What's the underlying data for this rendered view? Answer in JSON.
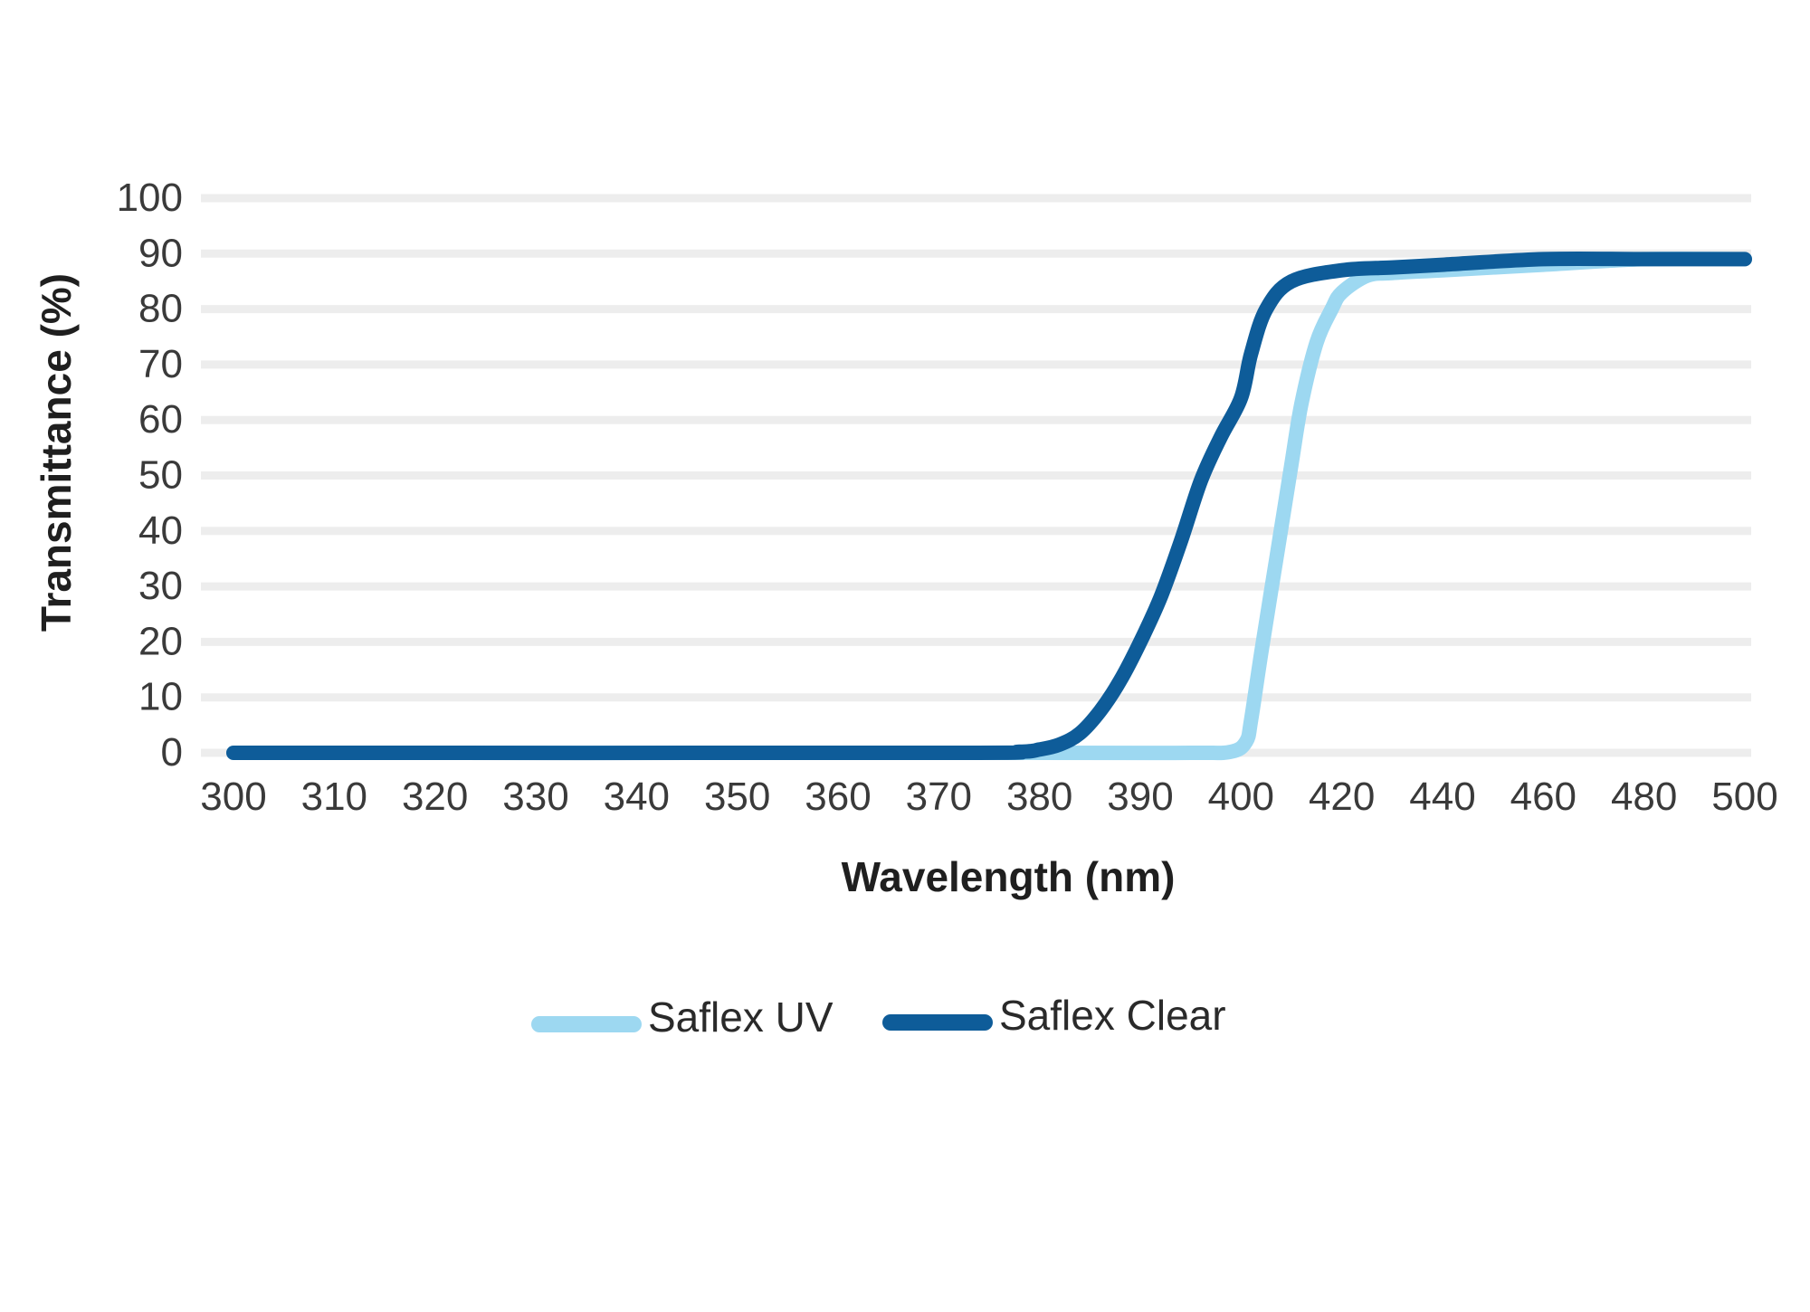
{
  "chart_data": {
    "type": "line",
    "title": "",
    "xlabel": "Wavelength (nm)",
    "ylabel": "Transmittance (%)",
    "ylim": [
      0,
      100
    ],
    "y_ticks": [
      0,
      10,
      20,
      30,
      40,
      50,
      60,
      70,
      80,
      90,
      100
    ],
    "x_ticks": [
      300,
      310,
      320,
      330,
      340,
      350,
      360,
      370,
      380,
      390,
      400,
      420,
      440,
      460,
      480,
      500
    ],
    "x_ticks_labels": [
      "300",
      "310",
      "320",
      "330",
      "340",
      "350",
      "360",
      "370",
      "380",
      "390",
      "400",
      "420",
      "440",
      "460",
      "480",
      "500"
    ],
    "y_ticks_labels": [
      "0",
      "10",
      "20",
      "30",
      "40",
      "50",
      "60",
      "70",
      "80",
      "90",
      "100"
    ],
    "grid": true,
    "legend_position": "bottom-center",
    "series": [
      {
        "name": "Saflex UV",
        "color": "#9dd8f1",
        "x": [
          300,
          380,
          395,
          399,
          401,
          402,
          404,
          407,
          410,
          412,
          415,
          418,
          420,
          425,
          430,
          440,
          460,
          480,
          500
        ],
        "y": [
          0,
          0,
          0,
          0.2,
          2,
          6,
          18,
          35,
          52,
          63,
          74,
          80,
          83,
          86,
          86.5,
          87,
          88,
          89,
          89
        ]
      },
      {
        "name": "Saflex Clear",
        "color": "#0e5c99",
        "x": [
          300,
          370,
          378,
          380,
          382,
          384,
          386,
          388,
          390,
          392,
          394,
          396,
          398,
          400,
          402,
          405,
          410,
          420,
          430,
          440,
          460,
          480,
          500
        ],
        "y": [
          0,
          0,
          0.2,
          0.6,
          1.5,
          3.5,
          7.5,
          13,
          20,
          28,
          38,
          49,
          57,
          64,
          72,
          80,
          85,
          87,
          87.5,
          88,
          89,
          89,
          89
        ]
      }
    ]
  }
}
